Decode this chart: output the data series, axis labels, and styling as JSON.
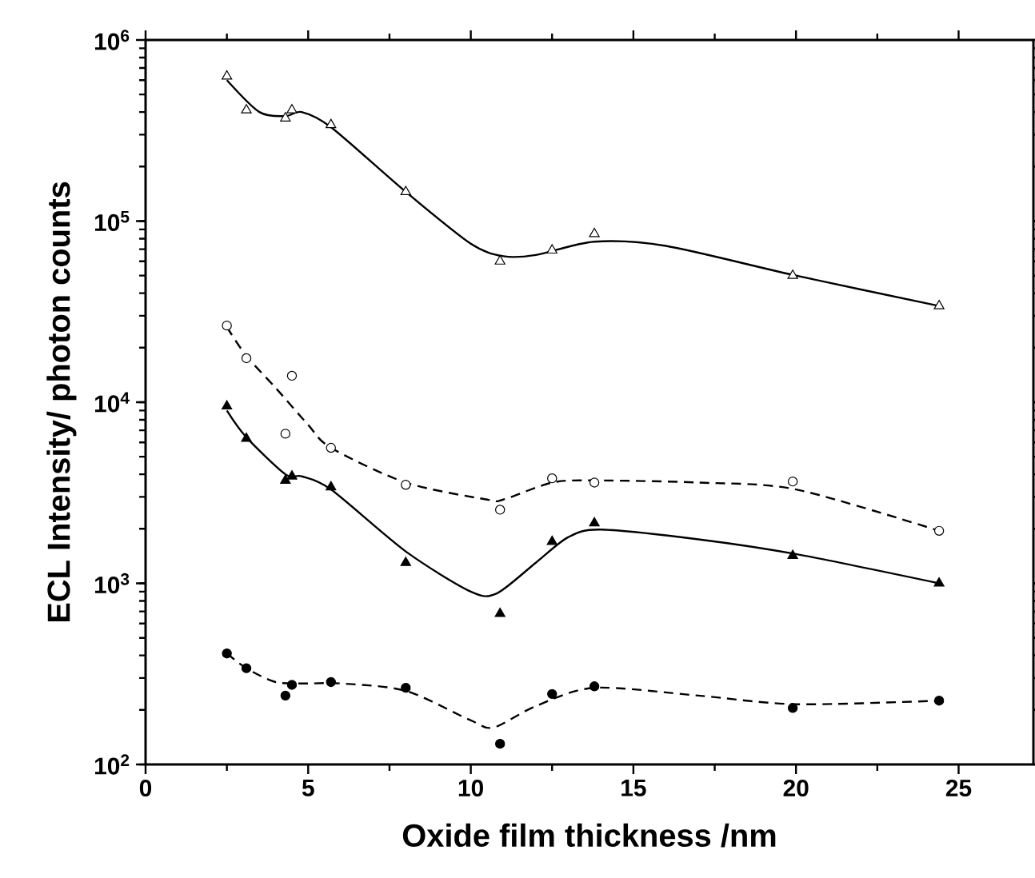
{
  "chart_data": {
    "type": "scatter",
    "xlabel": "Oxide film thickness /nm",
    "ylabel": "ECL Intensity/ photon counts",
    "log": "y",
    "xlim": [
      0,
      27.3
    ],
    "ylim": [
      100,
      1000000
    ],
    "xticks": [
      0,
      5,
      10,
      15,
      20,
      25
    ],
    "yticks": [
      {
        "value": 100,
        "label": "10$^{2}$"
      },
      {
        "value": 1000,
        "label": "10$^{3}$"
      },
      {
        "value": 10000,
        "label": "10$^{4}$"
      },
      {
        "value": 100000,
        "label": "10$^{5}$"
      },
      {
        "value": 1000000,
        "label": "10$^{6}$"
      }
    ],
    "grid": false,
    "series": [
      {
        "marker": "triangle",
        "color": "#ffffff",
        "x": [
          2.5,
          3.1,
          4.3,
          4.5,
          5.7,
          8.0,
          10.9,
          12.5,
          13.8,
          19.9,
          24.4
        ],
        "values": [
          630000,
          410000,
          370000,
          410000,
          340000,
          145000,
          60000,
          69000,
          85000,
          50000,
          34000
        ]
      },
      {
        "type": "line",
        "line_style": "solid",
        "color": "#000000",
        "x": [
          2.5,
          3.5,
          4.3,
          4.8,
          5.7,
          8,
          10,
          11,
          12,
          13.8,
          16,
          20,
          24.4
        ],
        "values": [
          600000,
          400000,
          380000,
          400000,
          330000,
          145000,
          75000,
          64000,
          65000,
          77000,
          73000,
          50000,
          34000
        ]
      },
      {
        "marker": "circle",
        "color": "#ffffff",
        "x": [
          2.5,
          3.1,
          4.5,
          4.3,
          5.7,
          8.0,
          10.9,
          12.5,
          13.8,
          19.9,
          24.4
        ],
        "values": [
          26500,
          17500,
          14000,
          6700,
          5600,
          3500,
          2550,
          3800,
          3600,
          3650,
          1950
        ]
      },
      {
        "type": "line",
        "line_style": "dashed",
        "color": "#000000",
        "x": [
          2.5,
          3.1,
          4,
          5,
          5.7,
          8,
          10.5,
          11,
          12.5,
          13.8,
          17,
          20,
          24.4
        ],
        "values": [
          26000,
          18000,
          12000,
          7500,
          5600,
          3600,
          2900,
          2900,
          3600,
          3700,
          3600,
          3300,
          1950
        ]
      },
      {
        "marker": "triangle",
        "color": "#000000",
        "x": [
          2.5,
          3.1,
          4.3,
          4.5,
          5.7,
          8.0,
          10.9,
          12.5,
          13.8,
          19.9,
          24.4
        ],
        "values": [
          9500,
          6300,
          3700,
          3900,
          3400,
          1300,
          680,
          1700,
          2150,
          1420,
          1000
        ]
      },
      {
        "type": "line",
        "line_style": "solid",
        "color": "#000000",
        "x": [
          2.5,
          3.1,
          4.3,
          4.8,
          5.7,
          8,
          10,
          10.8,
          12,
          13,
          14,
          17,
          20,
          24.4
        ],
        "values": [
          9000,
          6400,
          4000,
          3900,
          3300,
          1500,
          900,
          880,
          1300,
          1800,
          1980,
          1750,
          1450,
          1000
        ]
      },
      {
        "marker": "circle",
        "color": "#000000",
        "x": [
          2.5,
          3.1,
          4.3,
          4.5,
          5.7,
          8.0,
          10.9,
          12.5,
          13.8,
          19.9,
          24.4
        ],
        "values": [
          410,
          340,
          240,
          275,
          285,
          265,
          130,
          245,
          270,
          205,
          225
        ]
      },
      {
        "type": "line",
        "line_style": "dashed",
        "color": "#000000",
        "x": [
          2.5,
          3.1,
          4,
          5,
          6,
          8,
          10,
          10.7,
          12,
          13.8,
          17,
          20,
          24.4
        ],
        "values": [
          410,
          340,
          285,
          280,
          280,
          255,
          175,
          160,
          210,
          265,
          240,
          215,
          225
        ]
      }
    ]
  }
}
